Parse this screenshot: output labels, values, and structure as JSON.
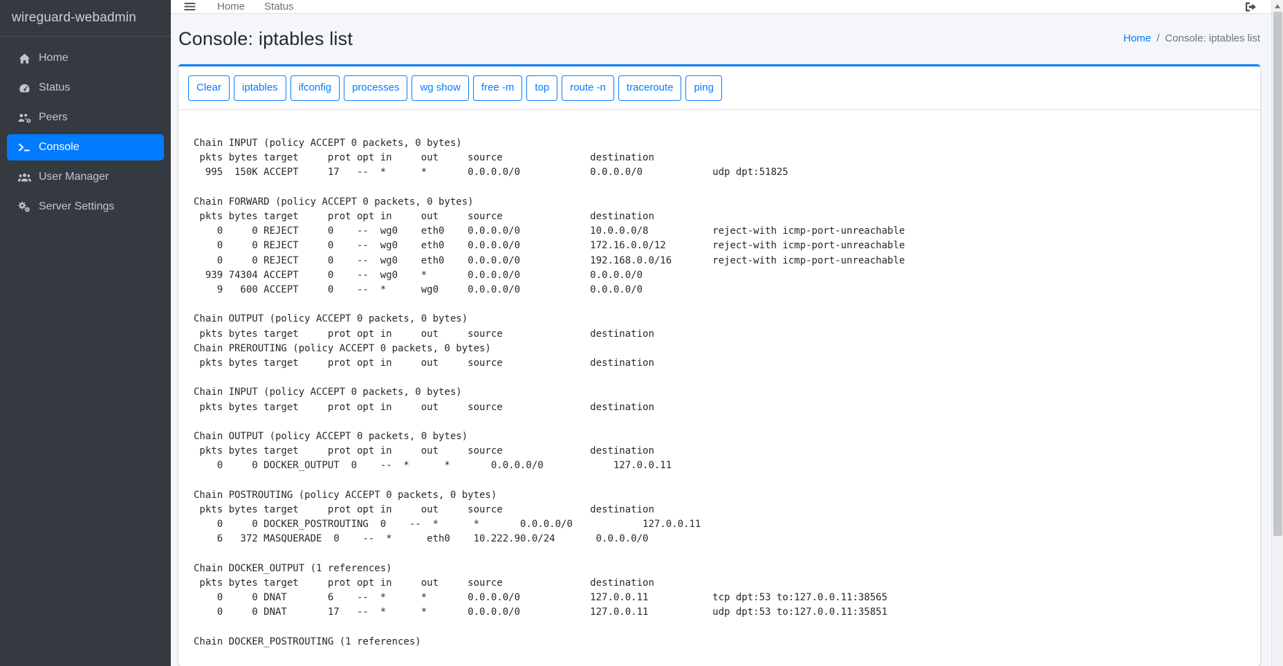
{
  "colors": {
    "accent": "#007bff",
    "sidebar_bg": "#343a40",
    "content_bg": "#f4f6f9",
    "card_bg": "#ffffff",
    "muted_text": "#6c757d"
  },
  "sidebar": {
    "brand": "wireguard-webadmin",
    "items": [
      {
        "label": "Home",
        "icon": "home-icon",
        "active": false
      },
      {
        "label": "Status",
        "icon": "gauge-icon",
        "active": false
      },
      {
        "label": "Peers",
        "icon": "users-gear-icon",
        "active": false
      },
      {
        "label": "Console",
        "icon": "terminal-icon",
        "active": true
      },
      {
        "label": "User Manager",
        "icon": "users-icon",
        "active": false
      },
      {
        "label": "Server Settings",
        "icon": "gears-icon",
        "active": false
      }
    ]
  },
  "navbar": {
    "menu_icon": "menu-icon",
    "links": [
      {
        "label": "Home"
      },
      {
        "label": "Status"
      }
    ],
    "logout_icon": "logout-icon"
  },
  "page": {
    "title": "Console: iptables list",
    "breadcrumb": {
      "home": "Home",
      "separator": "/",
      "current": "Console: iptables list"
    }
  },
  "console": {
    "buttons": [
      {
        "label": "Clear"
      },
      {
        "label": "iptables"
      },
      {
        "label": "ifconfig"
      },
      {
        "label": "processes"
      },
      {
        "label": "wg show"
      },
      {
        "label": "free -m"
      },
      {
        "label": "top"
      },
      {
        "label": "route -n"
      },
      {
        "label": "traceroute"
      },
      {
        "label": "ping"
      }
    ],
    "output": [
      "Chain INPUT (policy ACCEPT 0 packets, 0 bytes)",
      " pkts bytes target     prot opt in     out     source               destination",
      "  995  150K ACCEPT     17   --  *      *       0.0.0.0/0            0.0.0.0/0            udp dpt:51825",
      "",
      "Chain FORWARD (policy ACCEPT 0 packets, 0 bytes)",
      " pkts bytes target     prot opt in     out     source               destination",
      "    0     0 REJECT     0    --  wg0    eth0    0.0.0.0/0            10.0.0.0/8           reject-with icmp-port-unreachable",
      "    0     0 REJECT     0    --  wg0    eth0    0.0.0.0/0            172.16.0.0/12        reject-with icmp-port-unreachable",
      "    0     0 REJECT     0    --  wg0    eth0    0.0.0.0/0            192.168.0.0/16       reject-with icmp-port-unreachable",
      "  939 74304 ACCEPT     0    --  wg0    *       0.0.0.0/0            0.0.0.0/0",
      "    9   600 ACCEPT     0    --  *      wg0     0.0.0.0/0            0.0.0.0/0",
      "",
      "Chain OUTPUT (policy ACCEPT 0 packets, 0 bytes)",
      " pkts bytes target     prot opt in     out     source               destination",
      "Chain PREROUTING (policy ACCEPT 0 packets, 0 bytes)",
      " pkts bytes target     prot opt in     out     source               destination",
      "",
      "Chain INPUT (policy ACCEPT 0 packets, 0 bytes)",
      " pkts bytes target     prot opt in     out     source               destination",
      "",
      "Chain OUTPUT (policy ACCEPT 0 packets, 0 bytes)",
      " pkts bytes target     prot opt in     out     source               destination",
      "    0     0 DOCKER_OUTPUT  0    --  *      *       0.0.0.0/0            127.0.0.11",
      "",
      "Chain POSTROUTING (policy ACCEPT 0 packets, 0 bytes)",
      " pkts bytes target     prot opt in     out     source               destination",
      "    0     0 DOCKER_POSTROUTING  0    --  *      *       0.0.0.0/0            127.0.0.11",
      "    6   372 MASQUERADE  0    --  *      eth0    10.222.90.0/24       0.0.0.0/0",
      "",
      "Chain DOCKER_OUTPUT (1 references)",
      " pkts bytes target     prot opt in     out     source               destination",
      "    0     0 DNAT       6    --  *      *       0.0.0.0/0            127.0.0.11           tcp dpt:53 to:127.0.0.11:38565",
      "    0     0 DNAT       17   --  *      *       0.0.0.0/0            127.0.0.11           udp dpt:53 to:127.0.0.11:35851",
      "",
      "Chain DOCKER_POSTROUTING (1 references)"
    ]
  }
}
